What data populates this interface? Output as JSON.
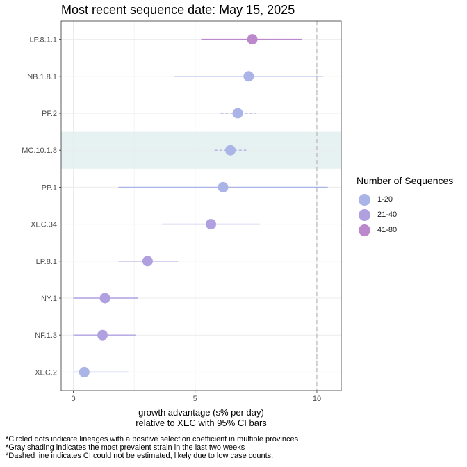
{
  "title": "Most recent sequence date: May 15, 2025",
  "chart_data": {
    "type": "scatter",
    "xlabel_lines": [
      "growth advantage (s% per day)",
      "relative to  XEC  with 95% CI bars"
    ],
    "xlim": [
      -0.5,
      11
    ],
    "xticks": [
      0,
      5,
      10
    ],
    "reference_line_x": 10,
    "grid": true,
    "legend_position": "right",
    "lineages": [
      {
        "name": "LP.8.1.1",
        "estimate": 7.35,
        "ci_low": 5.25,
        "ci_high": 9.4,
        "group": "41-80",
        "dashed_ci": false,
        "shaded": false
      },
      {
        "name": "NB.1.8.1",
        "estimate": 7.2,
        "ci_low": 4.15,
        "ci_high": 10.25,
        "group": "1-20",
        "dashed_ci": false,
        "shaded": false
      },
      {
        "name": "PF.2",
        "estimate": 6.75,
        "ci_low": 6.05,
        "ci_high": 7.5,
        "group": "1-20",
        "dashed_ci": true,
        "shaded": false
      },
      {
        "name": "MC.10.1.8",
        "estimate": 6.45,
        "ci_low": 5.8,
        "ci_high": 7.1,
        "group": "1-20",
        "dashed_ci": true,
        "shaded": true
      },
      {
        "name": "PP.1",
        "estimate": 6.15,
        "ci_low": 1.85,
        "ci_high": 10.45,
        "group": "1-20",
        "dashed_ci": false,
        "shaded": false
      },
      {
        "name": "XEC.34",
        "estimate": 5.65,
        "ci_low": 3.65,
        "ci_high": 7.65,
        "group": "21-40",
        "dashed_ci": false,
        "shaded": false
      },
      {
        "name": "LP.8.1",
        "estimate": 3.05,
        "ci_low": 1.85,
        "ci_high": 4.3,
        "group": "21-40",
        "dashed_ci": false,
        "shaded": false
      },
      {
        "name": "NY.1",
        "estimate": 1.3,
        "ci_low": 0.0,
        "ci_high": 2.65,
        "group": "21-40",
        "dashed_ci": false,
        "shaded": false
      },
      {
        "name": "NF.1.3",
        "estimate": 1.2,
        "ci_low": 0.0,
        "ci_high": 2.55,
        "group": "21-40",
        "dashed_ci": false,
        "shaded": false
      },
      {
        "name": "XEC.2",
        "estimate": 0.45,
        "ci_low": 0.0,
        "ci_high": 2.25,
        "group": "1-20",
        "dashed_ci": false,
        "shaded": false
      }
    ],
    "legend": {
      "title": "Number of Sequences",
      "items": [
        {
          "label": "1-20",
          "color": "#abb4e6"
        },
        {
          "label": "21-40",
          "color": "#b0a0e0"
        },
        {
          "label": "41-80",
          "color": "#bb88cc"
        }
      ]
    },
    "colors": {
      "shading": "#e6f1f2",
      "panel_border": "#333333",
      "grid": "#ebebeb",
      "reference_line": "#bbbbbb"
    }
  },
  "footnotes": [
    "*Circled dots indicate lineages with a positive selection coefficient in multiple provinces",
    "*Gray shading indicates the most prevalent strain in the last two weeks",
    "*Dashed line indicates CI could not be estimated, likely due to low case counts."
  ]
}
